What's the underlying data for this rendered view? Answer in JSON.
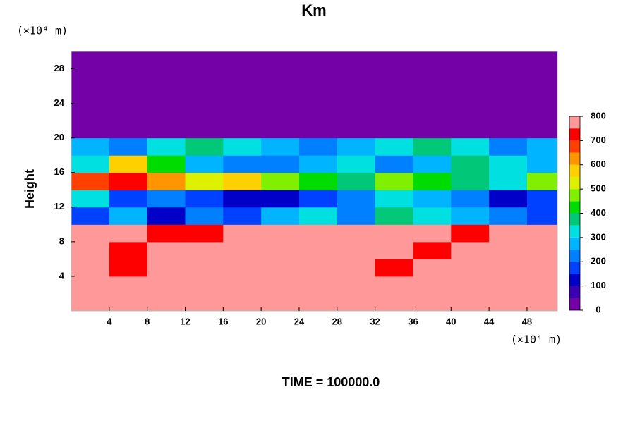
{
  "chart_data": {
    "type": "heatmap",
    "title": "Km",
    "y_unit": "(×10⁴ m)",
    "x_unit": "(×10⁴ m)",
    "ylabel": "Height",
    "footer": "TIME = 100000.0",
    "xlim": [
      0,
      51.2
    ],
    "ylim": [
      0,
      30
    ],
    "xticks": [
      4,
      8,
      12,
      16,
      20,
      24,
      28,
      32,
      36,
      40,
      44,
      48
    ],
    "yticks": [
      4,
      8,
      12,
      16,
      20,
      24,
      28
    ],
    "x": [
      2,
      6,
      10,
      14,
      18,
      22,
      26,
      30,
      34,
      38,
      42,
      46,
      50
    ],
    "y": [
      1,
      3,
      5,
      7,
      9,
      11,
      13,
      15,
      17,
      19,
      21,
      23,
      25,
      27,
      29
    ],
    "z": [
      [
        800,
        800,
        800,
        800,
        800,
        800,
        800,
        800,
        800,
        800,
        800,
        800,
        800
      ],
      [
        800,
        750,
        800,
        800,
        800,
        800,
        800,
        800,
        750,
        800,
        800,
        800,
        750
      ],
      [
        800,
        700,
        750,
        800,
        800,
        800,
        750,
        800,
        700,
        800,
        800,
        800,
        800
      ],
      [
        800,
        700,
        800,
        800,
        800,
        800,
        800,
        800,
        750,
        700,
        750,
        800,
        800
      ],
      [
        750,
        750,
        700,
        700,
        750,
        750,
        750,
        750,
        750,
        750,
        700,
        750,
        750
      ],
      [
        150,
        250,
        100,
        200,
        150,
        250,
        300,
        200,
        350,
        300,
        250,
        200,
        150
      ],
      [
        300,
        150,
        200,
        150,
        100,
        100,
        150,
        200,
        300,
        250,
        200,
        100,
        150
      ],
      [
        650,
        700,
        600,
        500,
        550,
        450,
        400,
        350,
        450,
        400,
        350,
        300,
        450
      ],
      [
        300,
        550,
        400,
        250,
        200,
        200,
        250,
        300,
        200,
        250,
        350,
        300,
        250
      ],
      [
        250,
        200,
        300,
        350,
        300,
        250,
        200,
        250,
        300,
        350,
        300,
        200,
        250
      ],
      [
        0,
        0,
        0,
        0,
        0,
        0,
        0,
        0,
        0,
        0,
        0,
        0,
        0
      ],
      [
        0,
        0,
        0,
        0,
        0,
        0,
        0,
        0,
        0,
        0,
        0,
        0,
        0
      ],
      [
        0,
        0,
        0,
        0,
        0,
        0,
        0,
        0,
        0,
        0,
        0,
        0,
        0
      ],
      [
        0,
        0,
        0,
        0,
        0,
        0,
        0,
        0,
        0,
        0,
        0,
        0,
        0
      ],
      [
        0,
        0,
        0,
        0,
        0,
        0,
        0,
        0,
        0,
        0,
        0,
        0,
        0
      ]
    ],
    "colorbar": {
      "ticks": [
        0,
        100,
        200,
        300,
        400,
        500,
        600,
        700,
        800
      ],
      "bounds": [
        0,
        50,
        100,
        150,
        200,
        250,
        300,
        350,
        400,
        450,
        500,
        550,
        600,
        650,
        700,
        750,
        800
      ],
      "colors": [
        "#7400a8",
        "#3c00b4",
        "#0000c8",
        "#0040ff",
        "#0080ff",
        "#00b4ff",
        "#00e0e0",
        "#00c878",
        "#00dc00",
        "#80f000",
        "#dcf000",
        "#ffd000",
        "#ff9600",
        "#ff4000",
        "#ff0000",
        "#ff9999"
      ]
    }
  }
}
